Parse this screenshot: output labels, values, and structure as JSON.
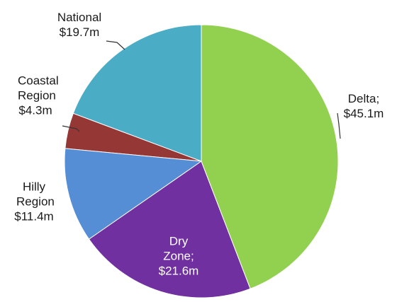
{
  "chart_data": {
    "type": "pie",
    "categories": [
      "Delta;",
      "Dry Zone;",
      "Hilly Region",
      "Coastal Region",
      "National"
    ],
    "values": [
      45.1,
      21.6,
      11.4,
      4.3,
      19.7
    ],
    "value_labels": [
      "$45.1m",
      "$21.6m",
      "$11.4m",
      "$4.3m",
      "$19.7m"
    ],
    "colors": [
      "#92d050",
      "#7030a0",
      "#558ed5",
      "#953735",
      "#4bacc6"
    ]
  }
}
